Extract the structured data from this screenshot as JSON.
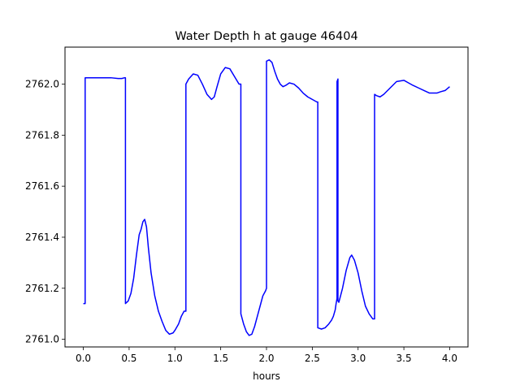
{
  "chart_data": {
    "type": "line",
    "title": "Water Depth h at gauge 46404",
    "xlabel": "hours",
    "ylabel": "",
    "xlim": [
      -0.2,
      4.2
    ],
    "ylim": [
      2760.97,
      2762.145
    ],
    "xticks": [
      0.0,
      0.5,
      1.0,
      1.5,
      2.0,
      2.5,
      3.0,
      3.5,
      4.0
    ],
    "xtick_labels": [
      "0.0",
      "0.5",
      "1.0",
      "1.5",
      "2.0",
      "2.5",
      "3.0",
      "3.5",
      "4.0"
    ],
    "yticks": [
      2761.0,
      2761.2,
      2761.4,
      2761.6,
      2761.8,
      2762.0
    ],
    "ytick_labels": [
      "2761.0",
      "2761.2",
      "2761.4",
      "2761.6",
      "2761.8",
      "2762.0"
    ],
    "grid": false,
    "series": [
      {
        "color": "#0000ff",
        "x": [
          0.0,
          0.02,
          0.02,
          0.1,
          0.2,
          0.3,
          0.38,
          0.42,
          0.45,
          0.46,
          0.46,
          0.49,
          0.52,
          0.55,
          0.58,
          0.61,
          0.63,
          0.65,
          0.67,
          0.69,
          0.71,
          0.74,
          0.78,
          0.82,
          0.86,
          0.9,
          0.94,
          0.98,
          1.0,
          1.04,
          1.07,
          1.1,
          1.12,
          1.12,
          1.15,
          1.2,
          1.25,
          1.3,
          1.35,
          1.4,
          1.43,
          1.46,
          1.5,
          1.55,
          1.6,
          1.65,
          1.7,
          1.72,
          1.72,
          1.75,
          1.78,
          1.81,
          1.84,
          1.87,
          1.9,
          1.93,
          1.96,
          1.99,
          2.0,
          2.0,
          2.03,
          2.06,
          2.09,
          2.12,
          2.15,
          2.18,
          2.21,
          2.25,
          2.3,
          2.35,
          2.4,
          2.45,
          2.5,
          2.55,
          2.56,
          2.56,
          2.6,
          2.64,
          2.68,
          2.71,
          2.73,
          2.75,
          2.76,
          2.77,
          2.77,
          2.775,
          2.78,
          2.78,
          2.79,
          2.83,
          2.87,
          2.91,
          2.93,
          2.96,
          3.0,
          3.04,
          3.08,
          3.12,
          3.16,
          3.18,
          3.18,
          3.2,
          3.24,
          3.28,
          3.35,
          3.42,
          3.5,
          3.55,
          3.6,
          3.66,
          3.72,
          3.78,
          3.82,
          3.86,
          3.9,
          3.95,
          4.0
        ],
        "y": [
          2761.14,
          2761.14,
          2762.025,
          2762.025,
          2762.025,
          2762.025,
          2762.022,
          2762.022,
          2762.025,
          2762.025,
          2761.14,
          2761.15,
          2761.18,
          2761.24,
          2761.33,
          2761.41,
          2761.43,
          2761.46,
          2761.47,
          2761.44,
          2761.36,
          2761.26,
          2761.17,
          2761.11,
          2761.07,
          2761.035,
          2761.02,
          2761.025,
          2761.035,
          2761.06,
          2761.09,
          2761.11,
          2761.11,
          2762.0,
          2762.02,
          2762.04,
          2762.035,
          2762.0,
          2761.96,
          2761.94,
          2761.95,
          2761.99,
          2762.04,
          2762.065,
          2762.06,
          2762.03,
          2762.0,
          2762.0,
          2761.1,
          2761.06,
          2761.03,
          2761.015,
          2761.02,
          2761.05,
          2761.09,
          2761.13,
          2761.17,
          2761.19,
          2761.2,
          2762.09,
          2762.095,
          2762.085,
          2762.05,
          2762.02,
          2762.0,
          2761.99,
          2761.995,
          2762.005,
          2762.0,
          2761.985,
          2761.965,
          2761.95,
          2761.94,
          2761.93,
          2761.93,
          2761.045,
          2761.04,
          2761.045,
          2761.06,
          2761.075,
          2761.09,
          2761.115,
          2761.14,
          2761.16,
          2762.01,
          2762.015,
          2762.02,
          2761.15,
          2761.145,
          2761.2,
          2761.27,
          2761.32,
          2761.33,
          2761.31,
          2761.26,
          2761.19,
          2761.13,
          2761.1,
          2761.08,
          2761.08,
          2761.96,
          2761.955,
          2761.95,
          2761.96,
          2761.985,
          2762.01,
          2762.015,
          2762.005,
          2761.995,
          2761.985,
          2761.975,
          2761.965,
          2761.965,
          2761.965,
          2761.97,
          2761.975,
          2761.99
        ]
      }
    ]
  }
}
